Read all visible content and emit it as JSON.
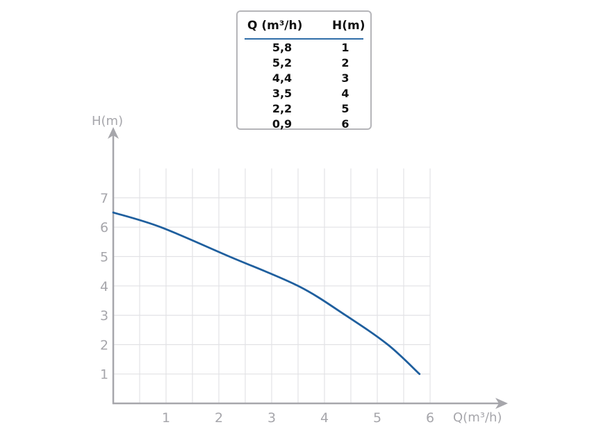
{
  "chart_data": {
    "type": "line",
    "title": "",
    "xlabel": "Q(m³/h)",
    "ylabel": "H(m)",
    "xlim": [
      0,
      6
    ],
    "ylim": [
      0,
      8
    ],
    "x_ticks": [
      "1",
      "2",
      "3",
      "4",
      "5",
      "6"
    ],
    "y_ticks": [
      "1",
      "2",
      "3",
      "4",
      "5",
      "6",
      "7"
    ],
    "grid": true,
    "series": [
      {
        "color": "#1f5f9e",
        "x": [
          0,
          0.9,
          2.2,
          3.5,
          4.4,
          5.2,
          5.8
        ],
        "y": [
          6.5,
          6,
          5,
          4,
          3,
          2,
          1
        ]
      }
    ],
    "table": {
      "headers": [
        "Q (m³/h)",
        "H(m)"
      ],
      "rows": [
        [
          "5,8",
          "1"
        ],
        [
          "5,2",
          "2"
        ],
        [
          "4,4",
          "3"
        ],
        [
          "3,5",
          "4"
        ],
        [
          "2,2",
          "5"
        ],
        [
          "0,9",
          "6"
        ]
      ]
    }
  }
}
